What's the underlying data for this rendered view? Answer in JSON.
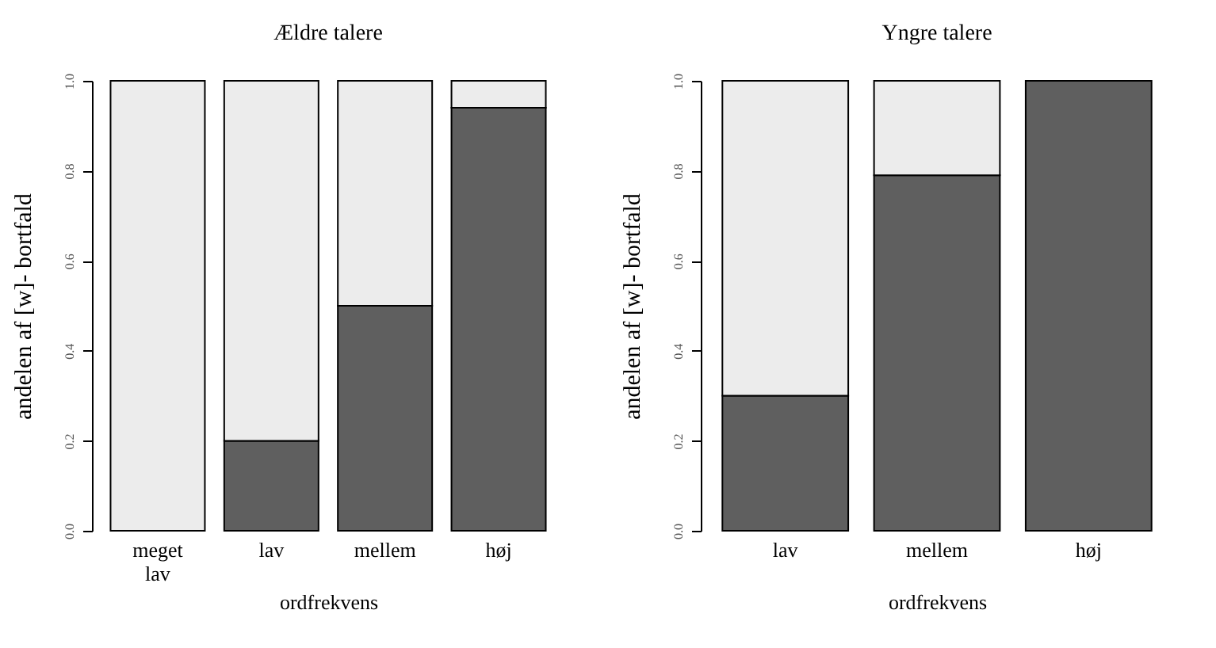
{
  "chart_data": [
    {
      "type": "bar",
      "stacked": true,
      "title": "Ældre talere",
      "xlabel": "ordfrekvens",
      "ylabel": "andelen af [w]- bortfald",
      "categories": [
        "meget lav",
        "lav",
        "mellem",
        "høj"
      ],
      "ylim": [
        0,
        1
      ],
      "yticks": [
        {
          "value": 0,
          "label": "0.0"
        },
        {
          "value": 0.2,
          "label": "0.2"
        },
        {
          "value": 0.4,
          "label": "0.4"
        },
        {
          "value": 0.6,
          "label": "0.6"
        },
        {
          "value": 0.8,
          "label": "0.8"
        },
        {
          "value": 1,
          "label": "1.0"
        }
      ],
      "series": [
        {
          "color": "#5f5f5f",
          "values": [
            0,
            0.2,
            0.5,
            0.94
          ]
        },
        {
          "color": "#ececec",
          "values": [
            1,
            0.8,
            0.5,
            0.06
          ]
        }
      ]
    },
    {
      "type": "bar",
      "stacked": true,
      "title": "Yngre talere",
      "xlabel": "ordfrekvens",
      "ylabel": "andelen af [w]- bortfald",
      "categories": [
        "lav",
        "mellem",
        "høj"
      ],
      "ylim": [
        0,
        1
      ],
      "yticks": [
        {
          "value": 0,
          "label": "0.0"
        },
        {
          "value": 0.2,
          "label": "0.2"
        },
        {
          "value": 0.4,
          "label": "0.4"
        },
        {
          "value": 0.6,
          "label": "0.6"
        },
        {
          "value": 0.8,
          "label": "0.8"
        },
        {
          "value": 1,
          "label": "1.0"
        }
      ],
      "series": [
        {
          "color": "#5f5f5f",
          "values": [
            0.3,
            0.79,
            1
          ]
        },
        {
          "color": "#ececec",
          "values": [
            0.7,
            0.21,
            0
          ]
        }
      ]
    }
  ]
}
